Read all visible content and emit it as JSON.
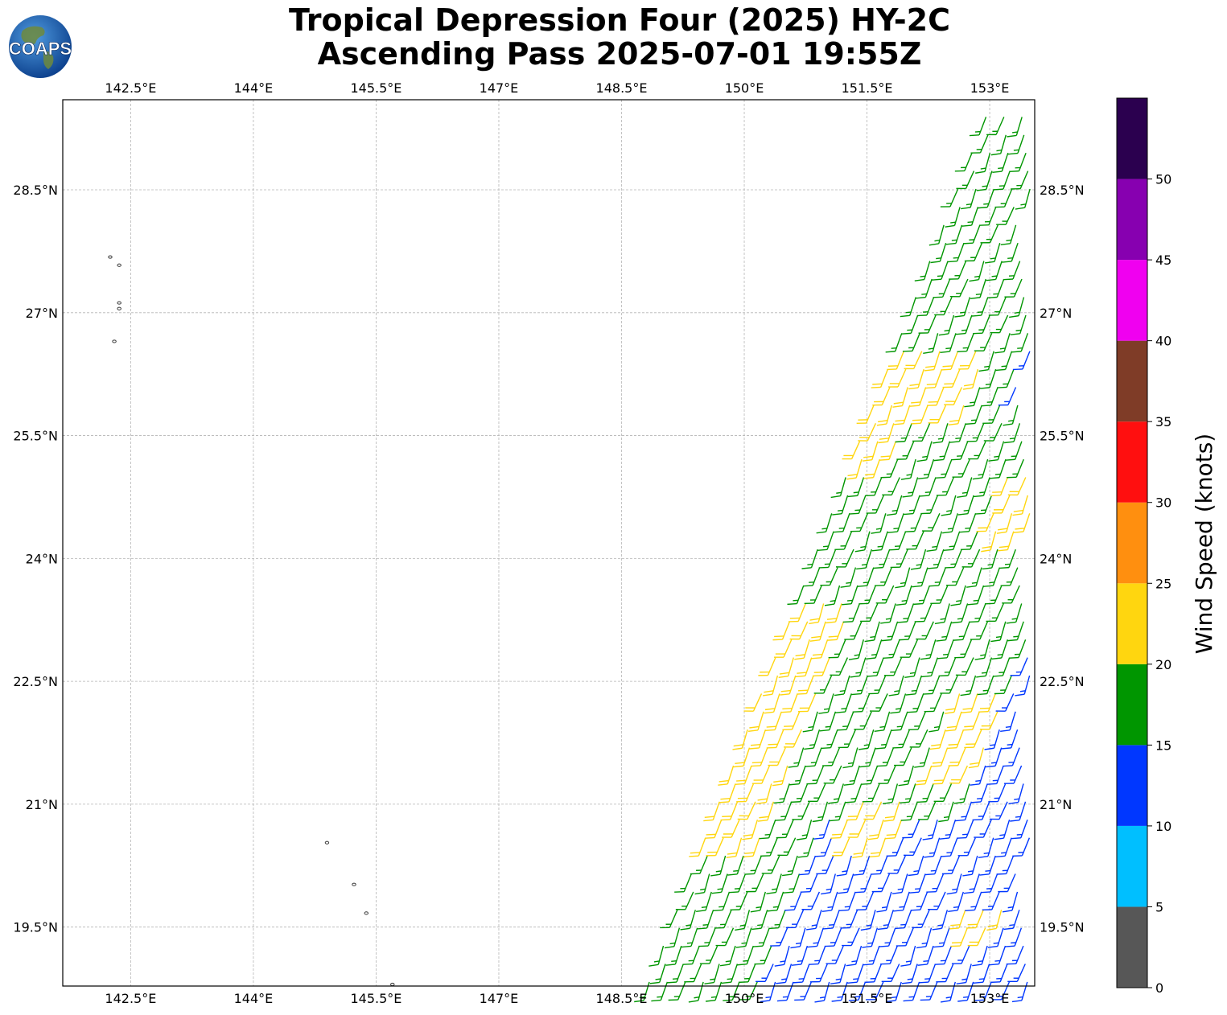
{
  "title": {
    "line1": "Tropical Depression Four (2025) HY-2C",
    "line2": "Ascending Pass 2025-07-01 19:55Z"
  },
  "logo": {
    "text": "COAPS",
    "icon": "globe-logo"
  },
  "map": {
    "lon_range": [
      141.67,
      153.55
    ],
    "lat_range": [
      18.78,
      29.6
    ],
    "lon_ticks": [
      {
        "value": 142.5,
        "label": "142.5°E"
      },
      {
        "value": 144.0,
        "label": "144°E"
      },
      {
        "value": 145.5,
        "label": "145.5°E"
      },
      {
        "value": 147.0,
        "label": "147°E"
      },
      {
        "value": 148.5,
        "label": "148.5°E"
      },
      {
        "value": 150.0,
        "label": "150°E"
      },
      {
        "value": 151.5,
        "label": "151.5°E"
      },
      {
        "value": 153.0,
        "label": "153°E"
      }
    ],
    "lat_ticks": [
      {
        "value": 28.5,
        "label": "28.5°N"
      },
      {
        "value": 27.0,
        "label": "27°N"
      },
      {
        "value": 25.5,
        "label": "25.5°N"
      },
      {
        "value": 24.0,
        "label": "24°N"
      },
      {
        "value": 22.5,
        "label": "22.5°N"
      },
      {
        "value": 21.0,
        "label": "21°N"
      },
      {
        "value": 19.5,
        "label": "19.5°N"
      }
    ],
    "grid": true,
    "islands": [
      {
        "lon": 142.25,
        "lat": 27.68
      },
      {
        "lon": 142.36,
        "lat": 27.58
      },
      {
        "lon": 142.36,
        "lat": 27.12
      },
      {
        "lon": 142.36,
        "lat": 27.05
      },
      {
        "lon": 142.3,
        "lat": 26.65
      },
      {
        "lon": 144.9,
        "lat": 20.53
      },
      {
        "lon": 145.23,
        "lat": 20.02
      },
      {
        "lon": 145.38,
        "lat": 19.67
      },
      {
        "lon": 145.7,
        "lat": 18.8
      }
    ]
  },
  "colorbar": {
    "label": "Wind Speed (knots)",
    "levels": [
      0,
      5,
      10,
      15,
      20,
      25,
      30,
      35,
      40,
      45,
      50,
      55
    ],
    "tick_labels": [
      "0",
      "5",
      "10",
      "15",
      "20",
      "25",
      "30",
      "35",
      "40",
      "45",
      "50"
    ],
    "colors": [
      "#575757",
      "#00bfff",
      "#0037ff",
      "#009600",
      "#ffd60f",
      "#ff8f0f",
      "#ff0f0f",
      "#7f3c27",
      "#f000f0",
      "#8700b0",
      "#2b004f"
    ]
  },
  "swath": {
    "east_lon": 153.55,
    "west_edge": [
      {
        "lat": 18.78,
        "lon": 148.82
      },
      {
        "lat": 29.25,
        "lon": 152.9
      }
    ],
    "dominant_direction_deg": 200,
    "zones": [
      {
        "lat": [
          20.5,
          23.5
        ],
        "offset_from_west_deg": [
          0.0,
          0.75
        ],
        "speed_kt": 22
      },
      {
        "lat": [
          25.2,
          25.8
        ],
        "offset_from_west_deg": [
          0.0,
          0.5
        ],
        "speed_kt": 21
      },
      {
        "lat": [
          25.8,
          26.6
        ],
        "offset_from_west_deg": [
          0.0,
          1.2
        ],
        "speed_kt": 21
      },
      {
        "lat": [
          24.2,
          25.0
        ],
        "offset_from_west_deg": [
          1.9,
          3.0
        ],
        "speed_kt": 22
      },
      {
        "lat": [
          21.4,
          22.4
        ],
        "offset_from_west_deg": [
          2.4,
          3.0
        ],
        "speed_kt": 22
      },
      {
        "lat": [
          22.0,
          22.2
        ],
        "offset_from_west_deg": [
          2.55,
          2.7
        ],
        "speed_kt": 27
      },
      {
        "lat": [
          20.5,
          21.2
        ],
        "offset_from_west_deg": [
          1.6,
          2.4
        ],
        "speed_kt": 21
      },
      {
        "lat": [
          19.3,
          19.9
        ],
        "offset_from_west_deg": [
          3.5,
          4.0
        ],
        "speed_kt": 21
      },
      {
        "lat": [
          18.78,
          21.0
        ],
        "offset_from_west_deg": [
          1.4,
          9.0
        ],
        "speed_kt": 13
      },
      {
        "lat": [
          21.0,
          24.2
        ],
        "offset_from_west_deg": [
          3.0,
          4.0
        ],
        "speed_kt": 13
      },
      {
        "lat": [
          24.2,
          26.0
        ],
        "offset_from_west_deg": [
          2.6,
          3.1
        ],
        "speed_kt": 13
      },
      {
        "lat": [
          26.0,
          29.6
        ],
        "offset_from_west_deg": [
          1.6,
          9.0
        ],
        "speed_kt": 13
      }
    ],
    "default_speed_kt": 17
  }
}
